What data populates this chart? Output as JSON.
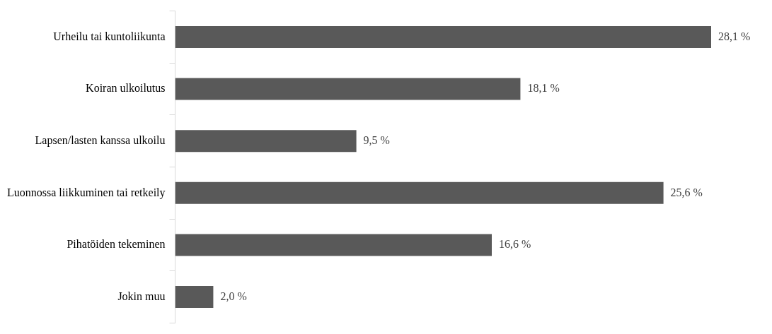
{
  "chart_data": {
    "type": "bar",
    "orientation": "horizontal",
    "categories": [
      "Urheilu tai kuntoliikunta",
      "Koiran ulkoilutus",
      "Lapsen/lasten kanssa ulkoilu",
      "Luonnossa liikkuminen tai retkeily",
      "Pihatöiden tekeminen",
      "Jokin muu"
    ],
    "values": [
      28.1,
      18.1,
      9.5,
      25.6,
      16.6,
      2.0
    ],
    "value_labels": [
      "28,1 %",
      "18,1 %",
      "9,5 %",
      "25,6 %",
      "16,6 %",
      "2,0 %"
    ],
    "color": "#595959",
    "legend": false,
    "tick_labels": "y"
  }
}
